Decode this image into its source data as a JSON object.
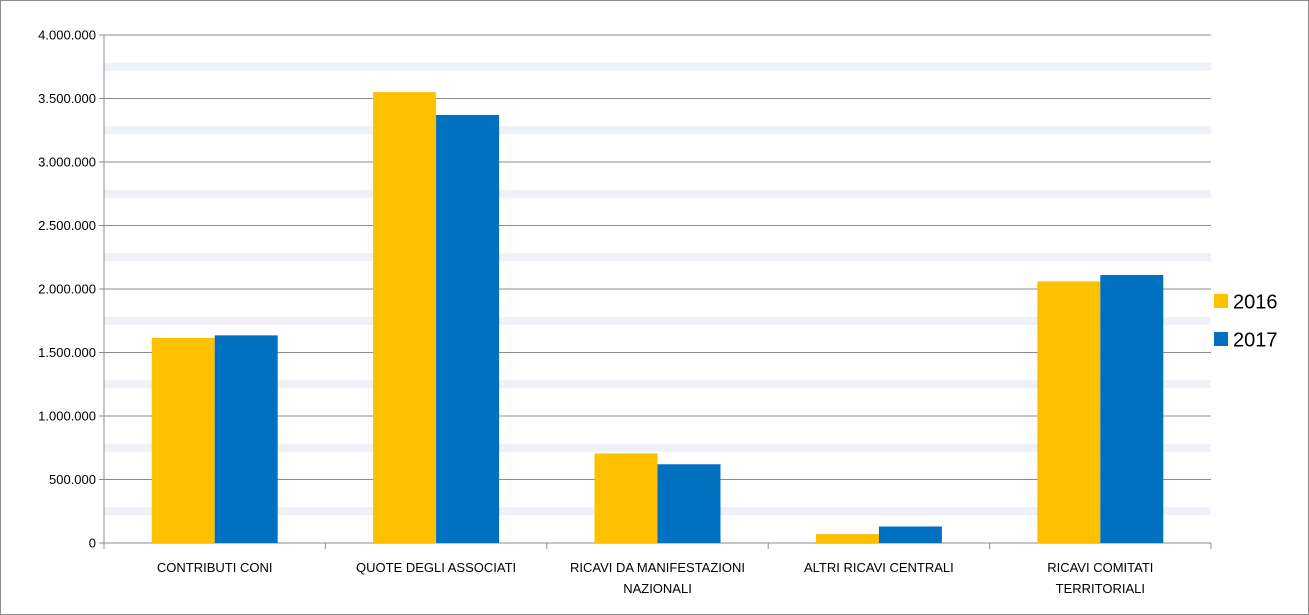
{
  "chart_data": {
    "type": "bar",
    "categories": [
      "CONTRIBUTI CONI",
      "QUOTE DEGLI ASSOCIATI",
      "RICAVI DA MANIFESTAZIONI NAZIONALI",
      "ALTRI RICAVI CENTRALI",
      "RICAVI COMITATI TERRITORIALI"
    ],
    "category_lines": [
      [
        "CONTRIBUTI CONI"
      ],
      [
        "QUOTE DEGLI ASSOCIATI"
      ],
      [
        "RICAVI DA MANIFESTAZIONI",
        "NAZIONALI"
      ],
      [
        "ALTRI RICAVI CENTRALI"
      ],
      [
        "RICAVI COMITATI",
        "TERRITORIALI"
      ]
    ],
    "series": [
      {
        "name": "2016",
        "color": "#FFC000",
        "values": [
          1615000,
          3550000,
          705000,
          70000,
          2060000
        ]
      },
      {
        "name": "2017",
        "color": "#0070C0",
        "values": [
          1635000,
          3370000,
          620000,
          130000,
          2110000
        ]
      }
    ],
    "yticks": [
      0,
      500000,
      1000000,
      1500000,
      2000000,
      2500000,
      3000000,
      3500000,
      4000000
    ],
    "ytick_labels": [
      "0",
      "500.000",
      "1.000.000",
      "1.500.000",
      "2.000.000",
      "2.500.000",
      "3.000.000",
      "3.500.000",
      "4.000.000"
    ],
    "ylim": [
      0,
      4000000
    ],
    "grid": true,
    "legend_position": "right"
  }
}
